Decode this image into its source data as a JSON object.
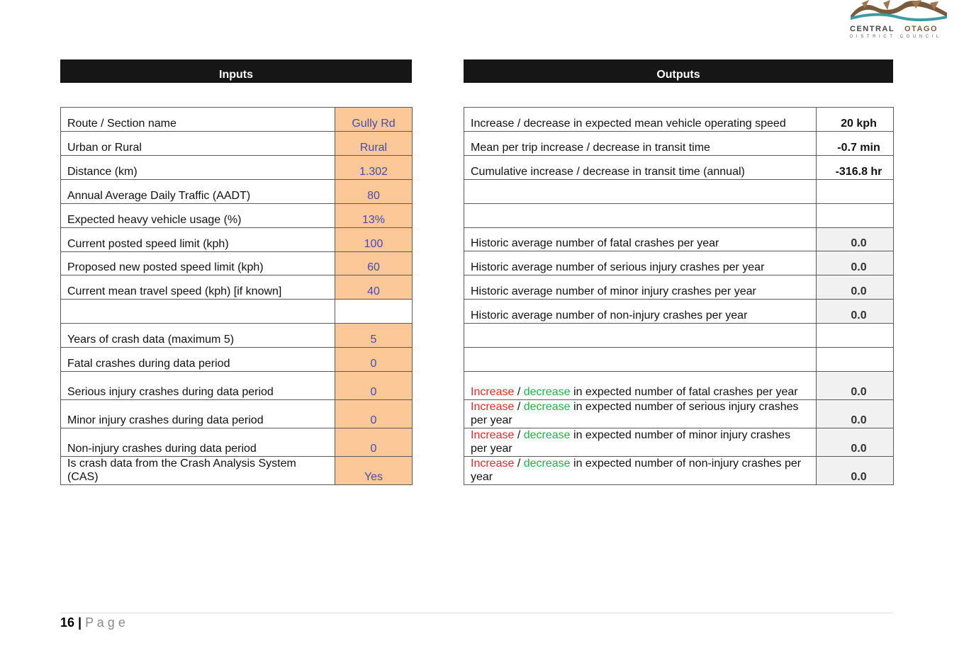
{
  "logo": {
    "word1": "CENTRAL",
    "word2": "OTAGO",
    "subtitle": "DISTRICT COUNCIL"
  },
  "inputs": {
    "title": "Inputs",
    "rows": [
      [
        "Route / Section name",
        "Gully Rd"
      ],
      [
        "Urban or Rural",
        "Rural"
      ],
      [
        "Distance (km)",
        "1.302"
      ],
      [
        "Annual Average Daily Traffic (AADT)",
        "80"
      ],
      [
        "Expected heavy vehicle usage (%)",
        "13%"
      ],
      [
        "Current posted speed limit (kph)",
        "100"
      ],
      [
        "Proposed new posted speed limit (kph)",
        "60"
      ],
      [
        "Current mean travel speed (kph) [if known]",
        "40"
      ],
      null,
      [
        "Years of crash data (maximum 5)",
        "5"
      ],
      [
        "Fatal crashes during data period",
        "0"
      ],
      [
        "Serious injury crashes during data period",
        "0"
      ],
      [
        "Minor injury crashes during data period",
        "0"
      ],
      [
        "Non-injury crashes during data period",
        "0"
      ],
      [
        "Is crash data from the Crash Analysis System (CAS)",
        "Yes"
      ]
    ]
  },
  "outputs": {
    "title": "Outputs",
    "rows": [
      {
        "label": "Increase / decrease in expected mean vehicle operating speed",
        "value": "20 kph"
      },
      {
        "label": "Mean per trip increase / decrease in transit time",
        "value": "-0.7 min"
      },
      {
        "label": "Cumulative increase / decrease in transit time (annual)",
        "value": "-316.8 hr"
      },
      null,
      null,
      {
        "label": "Historic average number of fatal crashes per year",
        "value": "0.0"
      },
      {
        "label": "Historic average number of serious injury crashes per year",
        "value": "0.0"
      },
      {
        "label": "Historic average number of minor injury crashes per year",
        "value": "0.0"
      },
      {
        "label": "Historic average number of non-injury crashes per year",
        "value": "0.0"
      },
      null,
      null,
      {
        "increase": "Increase",
        "slash": "/",
        "decrease": "decrease",
        "rest": "in expected number of fatal crashes per year",
        "value": "0.0"
      },
      {
        "increase": "Increase",
        "slash": "/",
        "decrease": "decrease",
        "rest": "in expected number of serious injury crashes per year",
        "value": "0.0"
      },
      {
        "increase": "Increase",
        "slash": "/",
        "decrease": "decrease",
        "rest": "in expected number of minor injury crashes per year",
        "value": "0.0"
      },
      {
        "increase": "Increase",
        "slash": "/",
        "decrease": "decrease",
        "rest": "in expected number of non-injury crashes per year",
        "value": "0.0"
      }
    ]
  },
  "footer": {
    "page": "16",
    "separator": "|",
    "label": "P a g e"
  }
}
